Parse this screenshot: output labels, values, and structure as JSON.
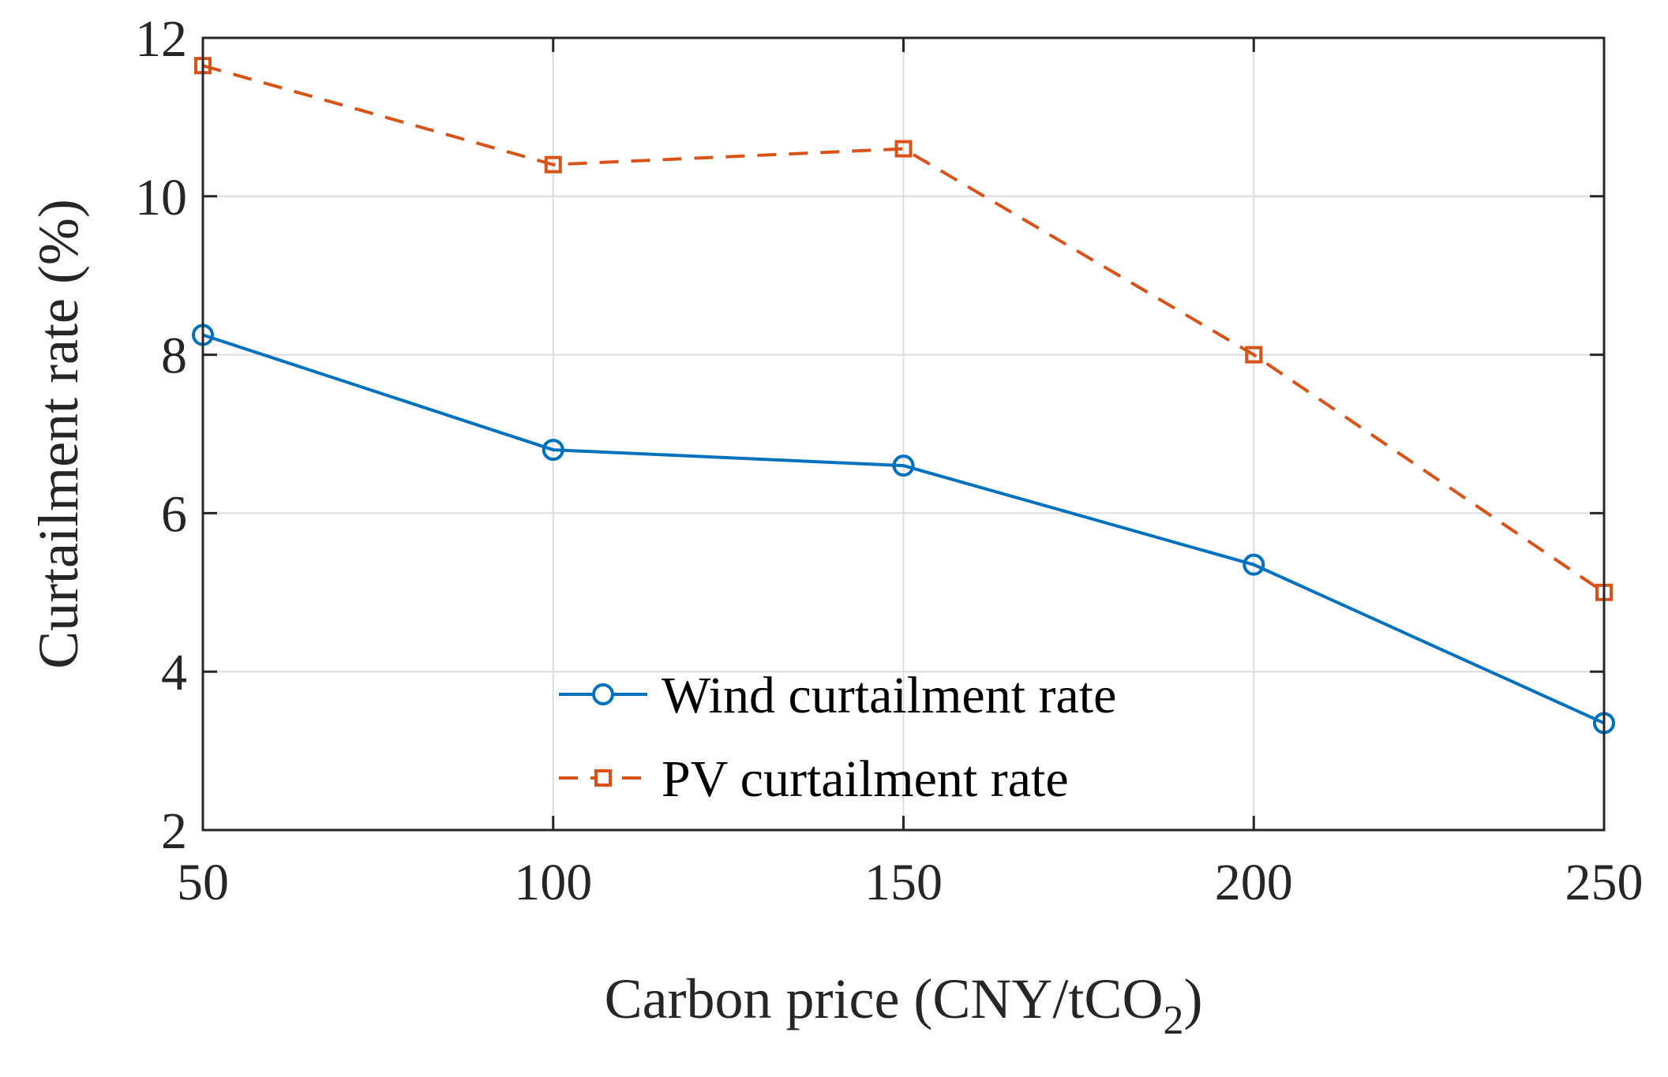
{
  "chart_data": {
    "type": "line",
    "xlabel": "Carbon price (CNY/tCO",
    "xlabel_subscript": "2",
    "xlabel_suffix": ")",
    "ylabel": "Curtailment rate (%)",
    "xlim": [
      50,
      250
    ],
    "ylim": [
      2,
      12
    ],
    "xticks": [
      50,
      100,
      150,
      200,
      250
    ],
    "yticks": [
      2,
      4,
      6,
      8,
      10,
      12
    ],
    "grid": true,
    "legend_position": "bottom-center",
    "x": [
      50,
      100,
      150,
      200,
      250
    ],
    "series": [
      {
        "name": "Wind curtailment rate",
        "values": [
          8.25,
          6.8,
          6.6,
          5.35,
          3.35
        ],
        "color": "#0072BD",
        "line_style": "solid",
        "marker": "circle"
      },
      {
        "name": "PV curtailment rate",
        "values": [
          11.65,
          10.4,
          10.6,
          8.0,
          5.0
        ],
        "color": "#D95319",
        "line_style": "dashed",
        "marker": "square"
      }
    ]
  }
}
